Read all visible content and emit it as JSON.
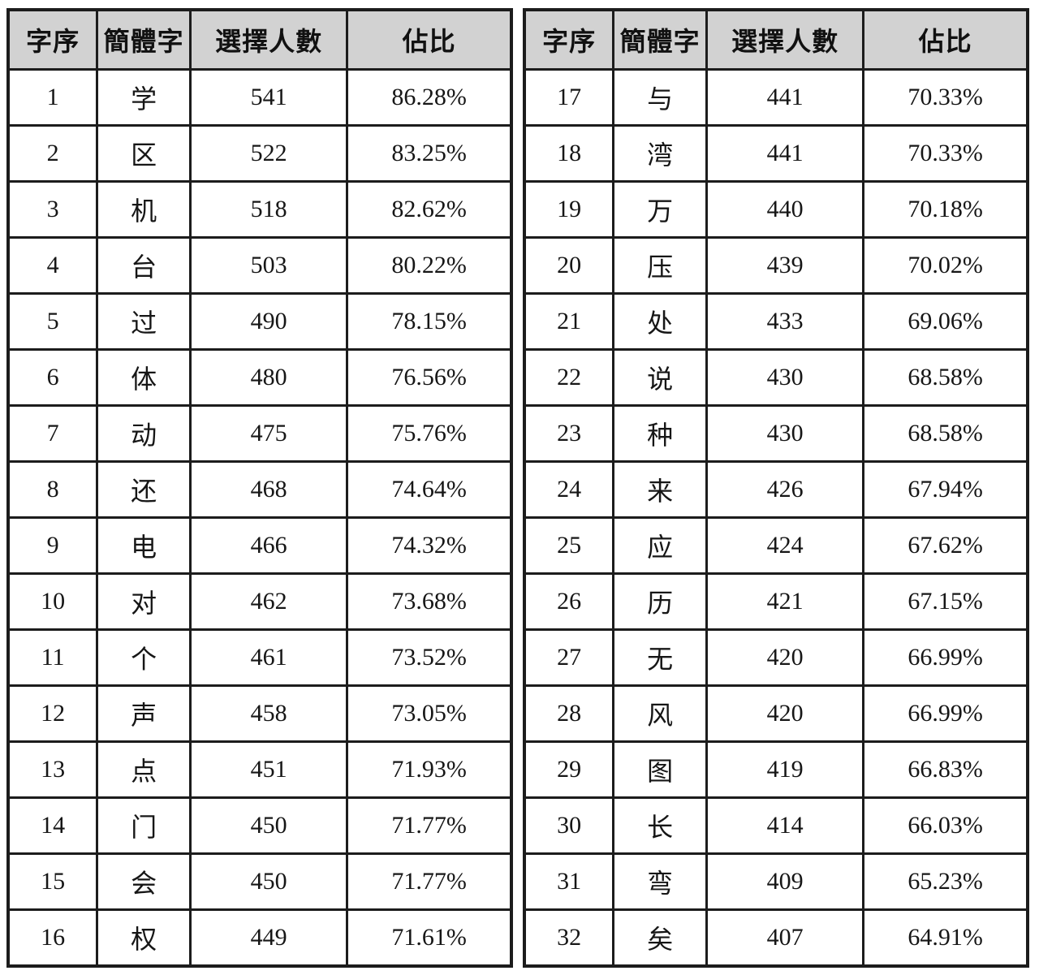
{
  "page": {
    "background": "#ffffff"
  },
  "table": {
    "headers": [
      "字序",
      "簡體字",
      "選擇人數",
      "佔比"
    ],
    "colors": {
      "header_bg": "#d2d2d2",
      "border": "#1c1c1c",
      "text": "#161616"
    },
    "left_rows": [
      [
        "1",
        "学",
        "541",
        "86.28%"
      ],
      [
        "2",
        "区",
        "522",
        "83.25%"
      ],
      [
        "3",
        "机",
        "518",
        "82.62%"
      ],
      [
        "4",
        "台",
        "503",
        "80.22%"
      ],
      [
        "5",
        "过",
        "490",
        "78.15%"
      ],
      [
        "6",
        "体",
        "480",
        "76.56%"
      ],
      [
        "7",
        "动",
        "475",
        "75.76%"
      ],
      [
        "8",
        "还",
        "468",
        "74.64%"
      ],
      [
        "9",
        "电",
        "466",
        "74.32%"
      ],
      [
        "10",
        "对",
        "462",
        "73.68%"
      ],
      [
        "11",
        "个",
        "461",
        "73.52%"
      ],
      [
        "12",
        "声",
        "458",
        "73.05%"
      ],
      [
        "13",
        "点",
        "451",
        "71.93%"
      ],
      [
        "14",
        "门",
        "450",
        "71.77%"
      ],
      [
        "15",
        "会",
        "450",
        "71.77%"
      ],
      [
        "16",
        "权",
        "449",
        "71.61%"
      ]
    ],
    "right_rows": [
      [
        "17",
        "与",
        "441",
        "70.33%"
      ],
      [
        "18",
        "湾",
        "441",
        "70.33%"
      ],
      [
        "19",
        "万",
        "440",
        "70.18%"
      ],
      [
        "20",
        "压",
        "439",
        "70.02%"
      ],
      [
        "21",
        "处",
        "433",
        "69.06%"
      ],
      [
        "22",
        "说",
        "430",
        "68.58%"
      ],
      [
        "23",
        "种",
        "430",
        "68.58%"
      ],
      [
        "24",
        "来",
        "426",
        "67.94%"
      ],
      [
        "25",
        "应",
        "424",
        "67.62%"
      ],
      [
        "26",
        "历",
        "421",
        "67.15%"
      ],
      [
        "27",
        "无",
        "420",
        "66.99%"
      ],
      [
        "28",
        "风",
        "420",
        "66.99%"
      ],
      [
        "29",
        "图",
        "419",
        "66.83%"
      ],
      [
        "30",
        "长",
        "414",
        "66.03%"
      ],
      [
        "31",
        "弯",
        "409",
        "65.23%"
      ],
      [
        "32",
        "矣",
        "407",
        "64.91%"
      ]
    ]
  }
}
